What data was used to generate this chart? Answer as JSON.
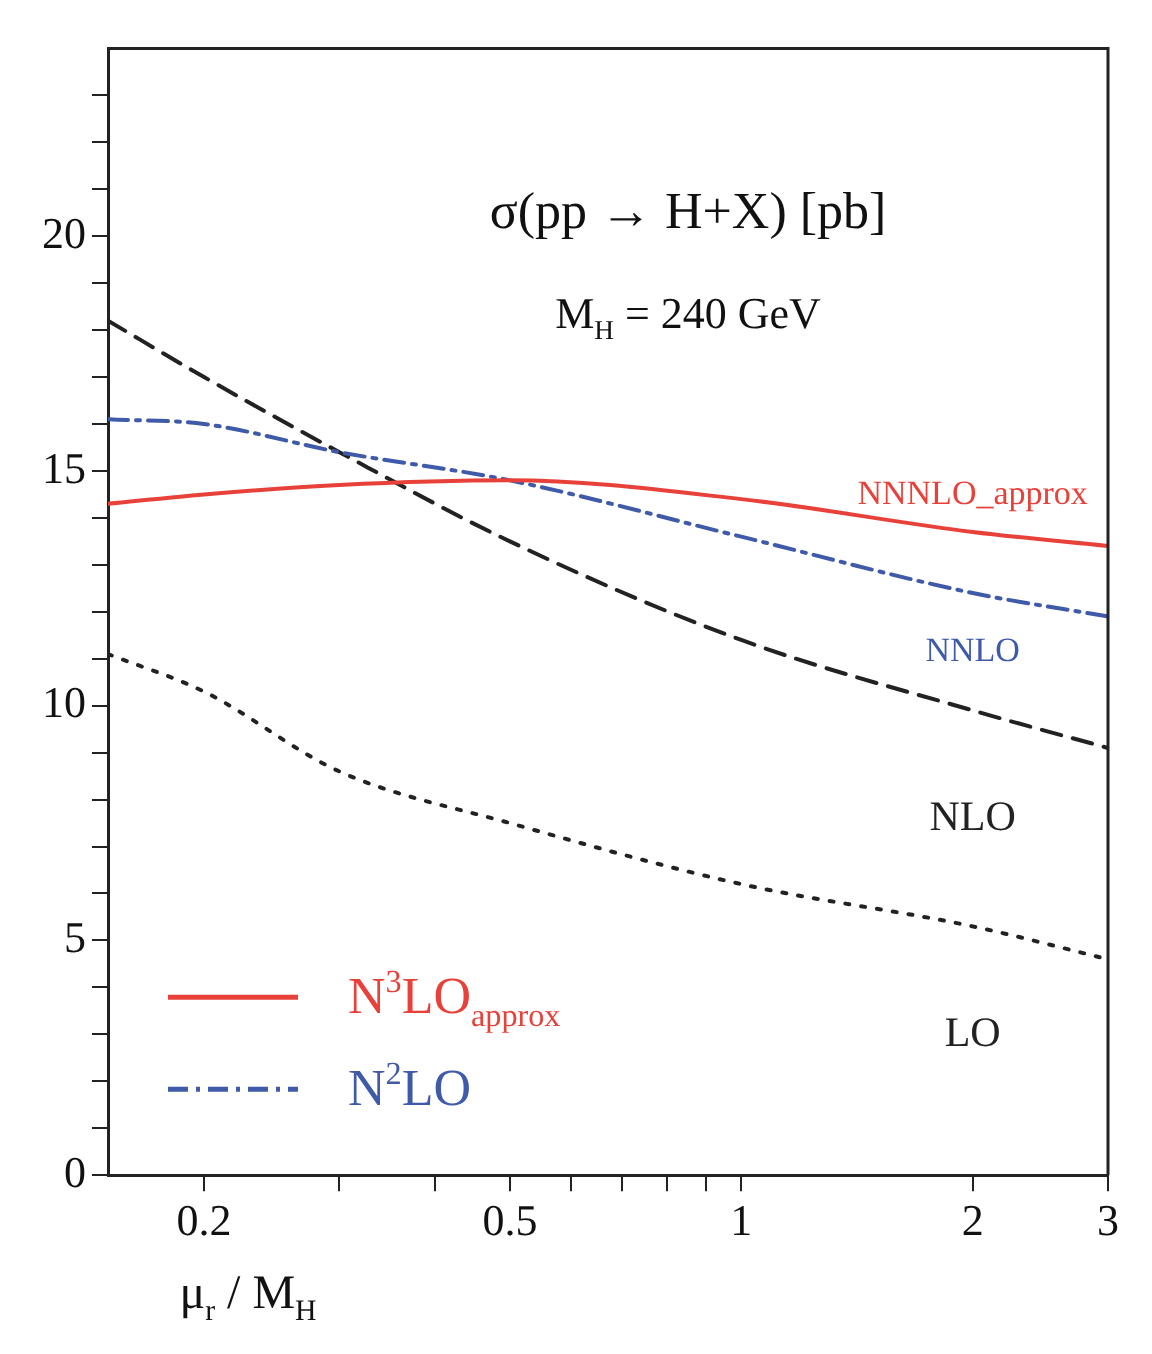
{
  "chart_data": {
    "type": "line",
    "title": "σ(pp → H+X) [pb]",
    "subtitle": "M$_{H}$ = 240 GeV",
    "xlabel": "μ$_{r}$ / M$_{H}$",
    "log": "x",
    "grid": false,
    "legend": "bottom left",
    "marker": "none",
    "x": [
      0.15,
      0.2,
      0.3,
      0.5,
      1,
      2,
      3
    ],
    "xlim": [
      0.15,
      3
    ],
    "xticks": [
      0.2,
      {
        "value": 0.3,
        "label": null
      },
      {
        "value": 0.4,
        "label": null
      },
      0.5,
      {
        "value": 0.6,
        "label": null
      },
      {
        "value": 0.7,
        "label": null
      },
      {
        "value": 0.8,
        "label": null
      },
      {
        "value": 0.9,
        "label": null
      },
      1,
      2,
      3
    ],
    "ylim": [
      0,
      24
    ],
    "yticks": [
      0,
      {
        "value": 1,
        "label": null
      },
      {
        "value": 2,
        "label": null
      },
      {
        "value": 3,
        "label": null
      },
      {
        "value": 4,
        "label": null
      },
      5,
      {
        "value": 6,
        "label": null
      },
      {
        "value": 7,
        "label": null
      },
      {
        "value": 8,
        "label": null
      },
      {
        "value": 9,
        "label": null
      },
      10,
      {
        "value": 11,
        "label": null
      },
      {
        "value": 12,
        "label": null
      },
      {
        "value": 13,
        "label": null
      },
      {
        "value": 14,
        "label": null
      },
      15,
      {
        "value": 16,
        "label": null
      },
      {
        "value": 17,
        "label": null
      },
      {
        "value": 18,
        "label": null
      },
      {
        "value": 19,
        "label": null
      },
      20,
      {
        "value": 21,
        "label": null
      },
      {
        "value": 22,
        "label": null
      },
      {
        "value": 23,
        "label": null
      }
    ],
    "series": [
      {
        "name": "N$^{3}$LO$_{approx}$",
        "color": "#e8413a",
        "line_style": "solid",
        "values": [
          14.3,
          14.5,
          14.7,
          14.8,
          14.4,
          13.7,
          13.4
        ]
      },
      {
        "name": "N$^{2}$LO",
        "color": "#3f5aa8",
        "line_style": "dashdot",
        "values": [
          16.1,
          16.0,
          15.4,
          14.8,
          13.6,
          12.4,
          11.9
        ]
      },
      {
        "color": "#222222",
        "line_style": "dashed",
        "values": [
          18.2,
          17.0,
          15.4,
          13.5,
          11.4,
          9.9,
          9.1
        ]
      },
      {
        "color": "#222222",
        "line_style": "dotted",
        "values": [
          11.1,
          10.3,
          8.6,
          7.5,
          6.2,
          5.3,
          4.6
        ]
      }
    ],
    "annotations": [
      "NNNLO_approx",
      "NNLO",
      "NLO",
      "LO"
    ]
  }
}
